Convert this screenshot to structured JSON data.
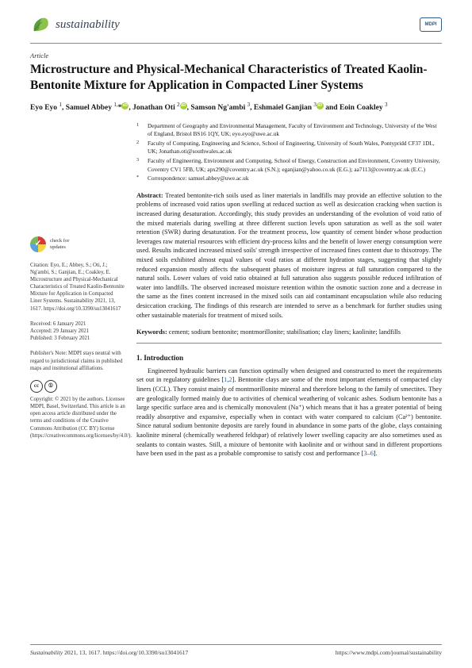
{
  "journal": {
    "name": "sustainability",
    "publisher_mark": "MDPI"
  },
  "article_type": "Article",
  "title": "Microstructure and Physical-Mechanical Characteristics of Treated Kaolin-Bentonite Mixture for Application in Compacted Liner Systems",
  "authors_html": "Eyo Eyo <sup>1</sup>, Samuel Abbey <sup>1,</sup>*<span class='orcid'>iD</span>, Jonathan Oti <sup>2</sup><span class='orcid'>iD</span>, Samson Ng'ambi <sup>3</sup>, Eshmaiel Ganjian <sup>3</sup><span class='orcid'>iD</span> and Eoin Coakley <sup>3</sup>",
  "affiliations": [
    {
      "n": "1",
      "text": "Department of Geography and Environmental Management, Faculty of Environment and Technology, University of the West of England, Bristol BS16 1QY, UK; eyo.eyo@uwe.ac.uk"
    },
    {
      "n": "2",
      "text": "Faculty of Computing, Engineering and Science, School of Engineering, University of South Wales, Pontypridd CF37 1DL, UK; Jonathan.oti@southwales.ac.uk"
    },
    {
      "n": "3",
      "text": "Faculty of Engineering, Environment and Computing, School of Energy, Construction and Environment, Coventry University, Coventry CV1 5FB, UK; apx290@coventry.ac.uk (S.N.); eganjian@yahoo.co.uk (E.G.); aa7113@coventry.ac.uk (E.C.)"
    },
    {
      "n": "*",
      "text": "Correspondence: samuel.abbey@uwe.ac.uk"
    }
  ],
  "check_updates": {
    "line1": "check for",
    "line2": "updates"
  },
  "citation": "Citation: Eyo, E.; Abbey, S.; Oti, J.; Ng'ambi, S.; Ganjian, E.; Coakley, E. Microstructure and Physical-Mechanical Characteristics of Treated Kaolin-Bentonite Mixture for Application in Compacted Liner Systems. Sustainability 2021, 13, 1617. https://doi.org/10.3390/su13041617",
  "dates": {
    "received": "Received: 6 January 2021",
    "accepted": "Accepted: 29 January 2021",
    "published": "Published: 3 February 2021"
  },
  "publishers_note": "Publisher's Note: MDPI stays neutral with regard to jurisdictional claims in published maps and institutional affiliations.",
  "copyright": "Copyright: © 2021 by the authors. Licensee MDPI, Basel, Switzerland. This article is an open access article distributed under the terms and conditions of the Creative Commons Attribution (CC BY) license (https://creativecommons.org/licenses/by/4.0/).",
  "abstract_label": "Abstract:",
  "abstract": "Treated bentonite-rich soils used as liner materials in landfills may provide an effective solution to the problems of increased void ratios upon swelling at reduced suction as well as desiccation cracking when suction is increased during desaturation. Accordingly, this study provides an understanding of the evolution of void ratio of the mixed materials during swelling at three different suction levels upon saturation as well as the soil water retention (SWR) during desaturation. For the treatment process, low quantity of cement binder whose production leverages raw material resources with efficient dry-process kilns and the benefit of lower energy consumption were used. Results indicated increased mixed soils' strength irrespective of increased fines content due to thixotropy. The mixed soils exhibited almost equal values of void ratios at different hydration stages, suggesting that slightly reduced expansion mostly affects the subsequent phases of moisture ingress at full saturation compared to the natural soils. Lower values of void ratio obtained at full saturation also suggests possible reduced infiltration of water into landfills. The observed increased moisture retention within the osmotic suction zone and a decrease in the same as the fines content increased in the mixed soils can aid contaminant encapsulation while also reducing desiccation cracking. The findings of this research are intended to serve as a benchmark for further studies using other sustainable materials for treatment of mixed soils.",
  "keywords_label": "Keywords:",
  "keywords": "cement; sodium bentonite; montmorillonite; stabilisation; clay liners; kaolinite; landfills",
  "section1_head": "1. Introduction",
  "section1_body": "Engineered hydraulic barriers can function optimally when designed and constructed to meet the requirements set out in regulatory guidelines [1,2]. Bentonite clays are some of the most important elements of compacted clay liners (CCL). They consist mainly of montmorillonite mineral and therefore belong to the family of smectites. They are geologically formed mainly due to activities of chemical weathering of volcanic ashes. Sodium bentonite has a large specific surface area and is chemically monovalent (Na⁺) which means that it has a greater potential of being readily absorptive and expansive, especially when in contact with water compared to calcium (Ca²⁺) bentonite. Since natural sodium bentonite deposits are rarely found in abundance in some parts of the globe, clays containing kaolinite mineral (chemically weathered feldspar) of relatively lower swelling capacity are also sometimes used as sealants to contain wastes. Still, a mixture of bentonite with kaolinite and or without sand in different proportions have been used in the past as a probable compromise to satisfy cost and performance [3–6].",
  "footer": {
    "left_italic": "Sustainability",
    "left_rest": " 2021, 13, 1617. https://doi.org/10.3390/su13041617",
    "right": "https://www.mdpi.com/journal/sustainability"
  },
  "colors": {
    "link": "#2060c0",
    "orcid": "#a6ce39"
  }
}
